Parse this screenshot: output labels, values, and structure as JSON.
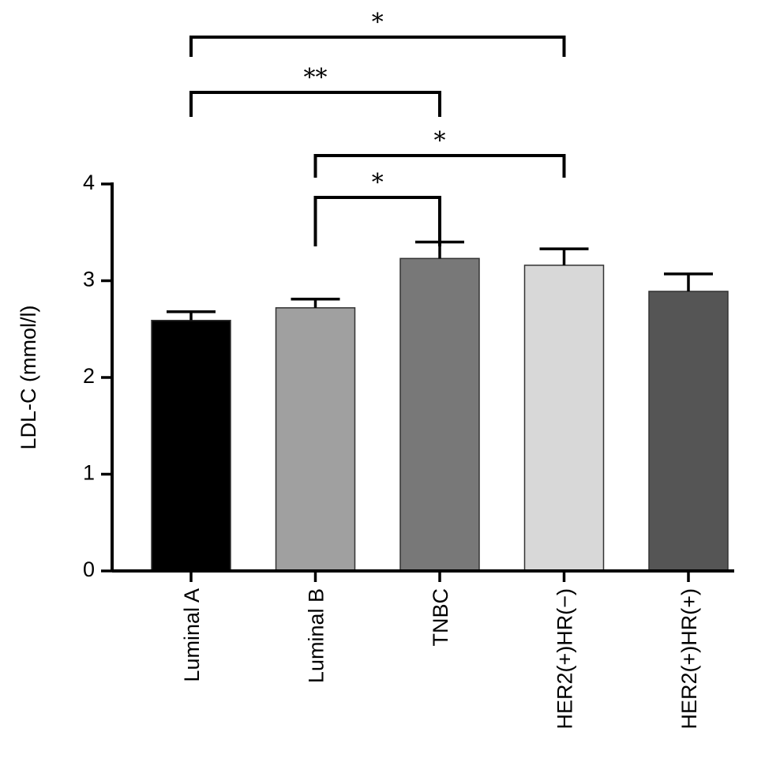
{
  "chart_data": {
    "type": "bar",
    "title": "",
    "xlabel": "",
    "ylabel": "LDL-C (mmol/l)",
    "ylim": [
      0,
      4
    ],
    "yticks": [
      0,
      1,
      2,
      3,
      4
    ],
    "categories": [
      "Luminal A",
      "Luminal B",
      "TNBC",
      "HER2(+)HR(−)",
      "HER2(+)HR(+)"
    ],
    "values": [
      2.59,
      2.72,
      3.23,
      3.16,
      2.89
    ],
    "errors": [
      0.09,
      0.09,
      0.17,
      0.17,
      0.18
    ],
    "colors": [
      "#000000",
      "#a0a0a0",
      "#787878",
      "#d8d8d8",
      "#555555"
    ],
    "grid": false,
    "legend": "none",
    "significance": [
      {
        "from": 0,
        "to": 3,
        "label": "*"
      },
      {
        "from": 0,
        "to": 2,
        "label": "**"
      },
      {
        "from": 1,
        "to": 3,
        "label": "*"
      },
      {
        "from": 1,
        "to": 2,
        "label": "*"
      }
    ]
  }
}
